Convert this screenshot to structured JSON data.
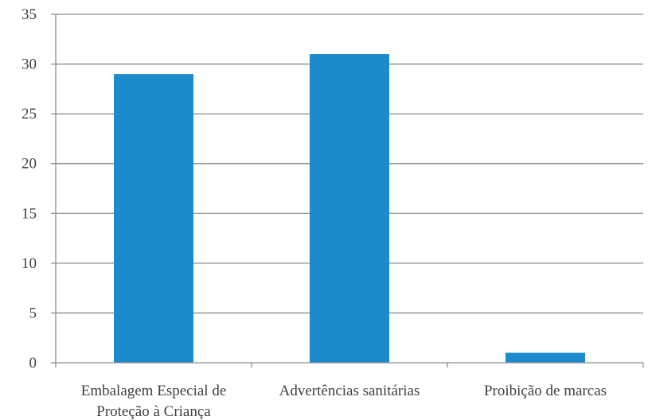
{
  "chart_data": {
    "type": "bar",
    "title": "",
    "xlabel": "",
    "ylabel": "",
    "categories": [
      [
        "Embalagem Especial de",
        "Proteção à Criança"
      ],
      [
        "Advertências sanitárias"
      ],
      [
        "Proibição de marcas"
      ]
    ],
    "values": [
      29,
      31,
      1
    ],
    "ylim": [
      0,
      35
    ],
    "yticks": [
      "0",
      "5",
      "10",
      "15",
      "20",
      "25",
      "30",
      "35"
    ],
    "grid": true,
    "legend": "none",
    "bar_color": "#1b8bcb"
  }
}
